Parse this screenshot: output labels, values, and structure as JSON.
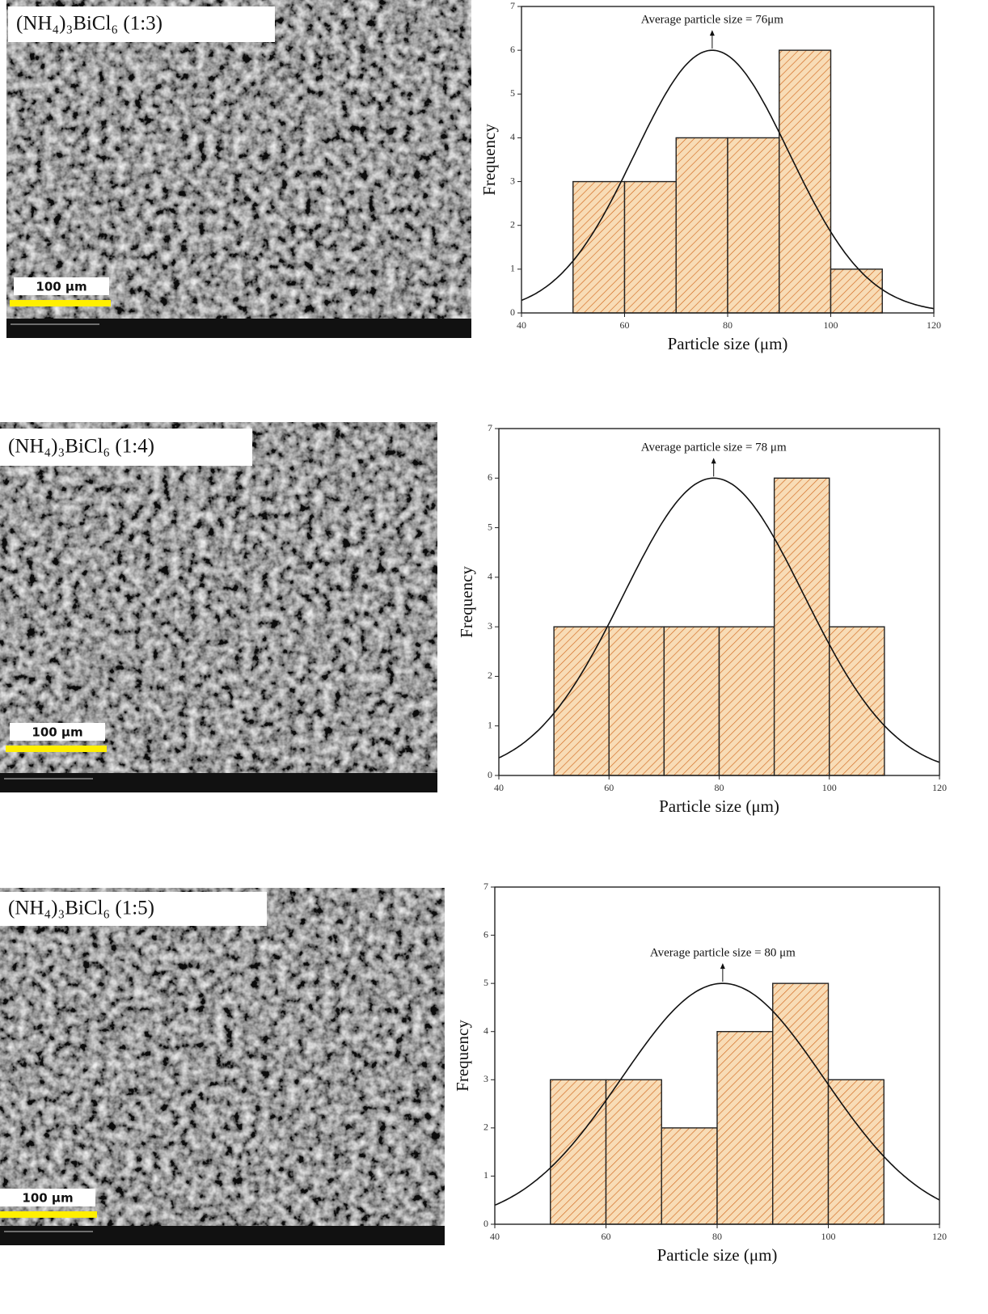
{
  "images": [
    {
      "label": "(NH₄)₃BiCl₆ (1:3)",
      "scale_bar": "100 µm"
    },
    {
      "label": "(NH₄)₃BiCl₆ (1:4)",
      "scale_bar": "100 µm"
    },
    {
      "label": "(NH₄)₃BiCl₆ (1:5)",
      "scale_bar": "100 µm"
    }
  ],
  "chart_data": [
    {
      "type": "histogram",
      "annotation": "Average particle size = 76μm",
      "xlabel": "Particle size (μm)",
      "ylabel": "Frequency",
      "bins": [
        50,
        60,
        70,
        80,
        90,
        100,
        110
      ],
      "values": [
        3,
        3,
        4,
        4,
        6,
        1
      ],
      "color": "#f8dcb6",
      "hatch_color": "#d2691e",
      "fit": {
        "peak": 6,
        "mean": 77,
        "sd": 15
      },
      "xlim": [
        40,
        120
      ],
      "xticks": [
        40,
        60,
        80,
        100,
        120
      ],
      "ylim": [
        0,
        7
      ],
      "yticks": [
        0,
        1,
        2,
        3,
        4,
        5,
        6,
        7
      ]
    },
    {
      "type": "histogram",
      "annotation": "Average particle size = 78 μm",
      "xlabel": "Particle size (μm)",
      "ylabel": "Frequency",
      "bins": [
        50,
        60,
        70,
        80,
        90,
        100,
        110
      ],
      "values": [
        3,
        3,
        3,
        3,
        6,
        3
      ],
      "color": "#f8dcb6",
      "hatch_color": "#d2691e",
      "fit": {
        "peak": 6,
        "mean": 79,
        "sd": 16.4
      },
      "xlim": [
        40,
        120
      ],
      "xticks": [
        40,
        60,
        80,
        100,
        120
      ],
      "ylim": [
        0,
        7
      ],
      "yticks": [
        0,
        1,
        2,
        3,
        4,
        5,
        6,
        7
      ]
    },
    {
      "type": "histogram",
      "annotation": "Average particle size = 80 μm",
      "xlabel": "Particle size (μm)",
      "ylabel": "Frequency",
      "bins": [
        50,
        60,
        70,
        80,
        90,
        100,
        110
      ],
      "values": [
        3,
        3,
        2,
        4,
        5,
        3
      ],
      "color": "#f8dcb6",
      "hatch_color": "#d2691e",
      "fit": {
        "peak": 5,
        "mean": 81,
        "sd": 18.2
      },
      "xlim": [
        40,
        120
      ],
      "xticks": [
        40,
        60,
        80,
        100,
        120
      ],
      "ylim": [
        0,
        7
      ],
      "yticks": [
        0,
        1,
        2,
        3,
        4,
        5,
        6,
        7
      ]
    }
  ]
}
